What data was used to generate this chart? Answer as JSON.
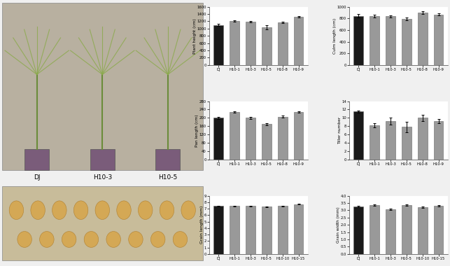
{
  "plant_height": {
    "title": "Plant height (cm)",
    "categories": [
      "DJ",
      "H10-1",
      "H10-3",
      "H10-5",
      "H10-8",
      "H10-9"
    ],
    "values": [
      1100,
      1200,
      1190,
      1040,
      1170,
      1330
    ],
    "errors": [
      30,
      20,
      25,
      60,
      25,
      20
    ],
    "ylim": [
      0,
      1600
    ],
    "yticks": [
      0,
      200,
      400,
      600,
      800,
      1000,
      1200,
      1400,
      1600
    ]
  },
  "culm_length": {
    "title": "Culm length (cm)",
    "categories": [
      "DJ",
      "H10-1",
      "H10-3",
      "H10-5",
      "H10-8",
      "H10-9"
    ],
    "values": [
      840,
      840,
      835,
      790,
      900,
      865
    ],
    "errors": [
      30,
      20,
      20,
      20,
      25,
      20
    ],
    "ylim": [
      0,
      1000
    ],
    "yticks": [
      0,
      200,
      400,
      600,
      800,
      1000
    ]
  },
  "pan_length": {
    "title": "Pan length (cm)",
    "categories": [
      "DJ",
      "H10-1",
      "H10-3",
      "H10-5",
      "H10-8",
      "H10-9"
    ],
    "values": [
      200,
      228,
      200,
      170,
      205,
      228
    ],
    "errors": [
      5,
      5,
      5,
      5,
      5,
      5
    ],
    "ylim": [
      0,
      280
    ],
    "yticks": [
      0,
      40,
      80,
      120,
      160,
      200,
      240,
      280
    ]
  },
  "tiller_number": {
    "title": "Tiller number",
    "categories": [
      "DJ",
      "H10-1",
      "H10-3",
      "H10-5",
      "H10-8",
      "H10-9"
    ],
    "values": [
      11.5,
      8.2,
      9.2,
      7.8,
      10.0,
      9.2
    ],
    "errors": [
      0.3,
      0.5,
      0.8,
      1.2,
      0.8,
      0.5
    ],
    "ylim": [
      0,
      14
    ],
    "yticks": [
      0,
      2,
      4,
      6,
      8,
      10,
      12,
      14
    ]
  },
  "grain_length": {
    "title": "Grain length (mm)",
    "categories": [
      "DJ",
      "H10-1",
      "H10-3",
      "H10-5",
      "H10-10",
      "H10-15"
    ],
    "values": [
      7.4,
      7.4,
      7.4,
      7.3,
      7.4,
      7.7
    ],
    "errors": [
      0.05,
      0.05,
      0.05,
      0.05,
      0.05,
      0.06
    ],
    "ylim": [
      0,
      9
    ],
    "yticks": [
      0,
      1,
      2,
      3,
      4,
      5,
      6,
      7,
      8,
      9
    ]
  },
  "grain_width": {
    "title": "Grain width (mm)",
    "categories": [
      "DJ",
      "H10-1",
      "H10-3",
      "H10-5",
      "H10-10",
      "H10-15"
    ],
    "values": [
      3.25,
      3.35,
      3.05,
      3.35,
      3.2,
      3.3
    ],
    "errors": [
      0.05,
      0.06,
      0.05,
      0.05,
      0.05,
      0.06
    ],
    "ylim": [
      0.0,
      4.0
    ],
    "yticks": [
      0.0,
      0.5,
      1.0,
      1.5,
      2.0,
      2.5,
      3.0,
      3.5,
      4.0
    ]
  },
  "bar_color_dj": "#1a1a1a",
  "bar_color_h10": "#999999",
  "bar_edge_color": "#666666",
  "figure_bg": "#f0f0f0",
  "photo_top_bg": "#b8b0a0",
  "photo_bottom_bg": "#c8bc9a",
  "label_dj": "DJ",
  "label_h103": "H10-3",
  "label_h105": "H10-5"
}
